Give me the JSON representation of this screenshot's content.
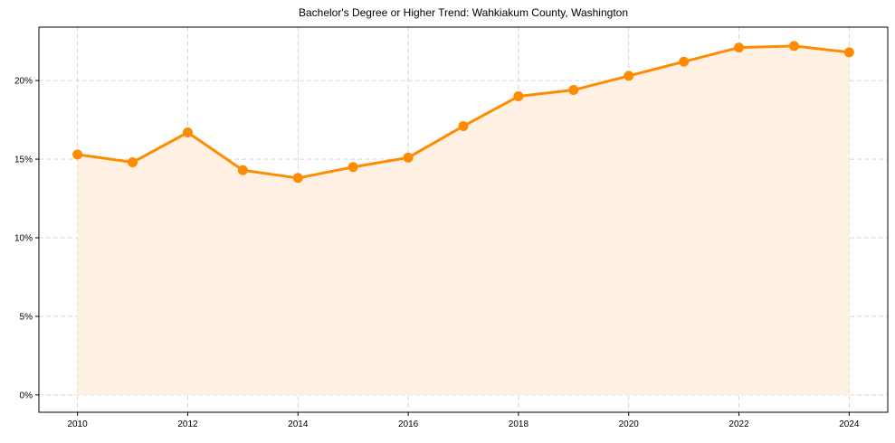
{
  "chart_data": {
    "type": "line",
    "title": "Bachelor's Degree or Higher Trend: Wahkiakum County, Washington",
    "xlabel": "",
    "ylabel": "",
    "x": [
      2010,
      2011,
      2012,
      2013,
      2014,
      2015,
      2016,
      2017,
      2018,
      2019,
      2020,
      2021,
      2022,
      2023,
      2024
    ],
    "series": [
      {
        "name": "Bachelor's Degree or Higher",
        "values": [
          15.3,
          14.8,
          16.7,
          14.3,
          13.8,
          14.5,
          15.1,
          17.1,
          19.0,
          19.4,
          20.3,
          21.2,
          22.1,
          22.2,
          21.8
        ],
        "color": "#FF8C00",
        "fill": true,
        "fill_color": "#FEF1E4",
        "markers": true
      }
    ],
    "xticks": [
      "2010",
      "2012",
      "2014",
      "2016",
      "2018",
      "2020",
      "2022",
      "2024"
    ],
    "yticks": [
      "0%",
      "5%",
      "10%",
      "15%",
      "20%"
    ],
    "xlim": [
      2009.3,
      2024.7
    ],
    "ylim": [
      -1.1,
      23.4
    ],
    "grid": true,
    "legend": null
  }
}
